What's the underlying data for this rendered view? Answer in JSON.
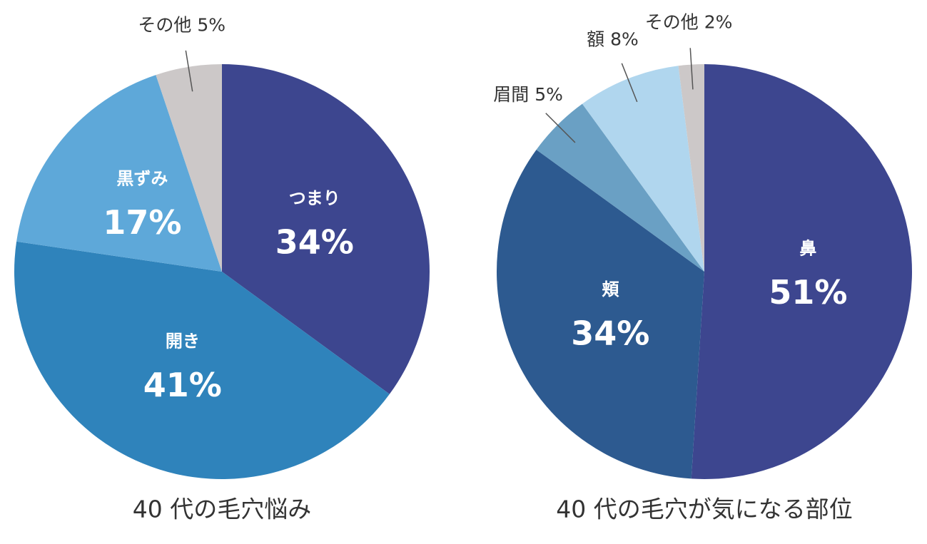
{
  "chart_data": [
    {
      "type": "pie",
      "title": "40 代の毛穴悩み",
      "categories": [
        "つまり",
        "開き",
        "黒ずみ",
        "その他"
      ],
      "values": [
        34,
        41,
        17,
        5
      ],
      "value_labels": [
        "34%",
        "41%",
        "17%",
        "5%"
      ],
      "colors": [
        "#3d468f",
        "#2f83bb",
        "#5ea8d9",
        "#ccc8c8"
      ]
    },
    {
      "type": "pie",
      "title": "40 代の毛穴が気になる部位",
      "categories": [
        "鼻",
        "頬",
        "眉間",
        "額",
        "その他"
      ],
      "values": [
        51,
        34,
        5,
        8,
        2
      ],
      "value_labels": [
        "51%",
        "34%",
        "5%",
        "8%",
        "2%"
      ],
      "colors": [
        "#3d468f",
        "#2d5a90",
        "#6aa0c4",
        "#b0d6ee",
        "#ccc8c8"
      ]
    }
  ]
}
